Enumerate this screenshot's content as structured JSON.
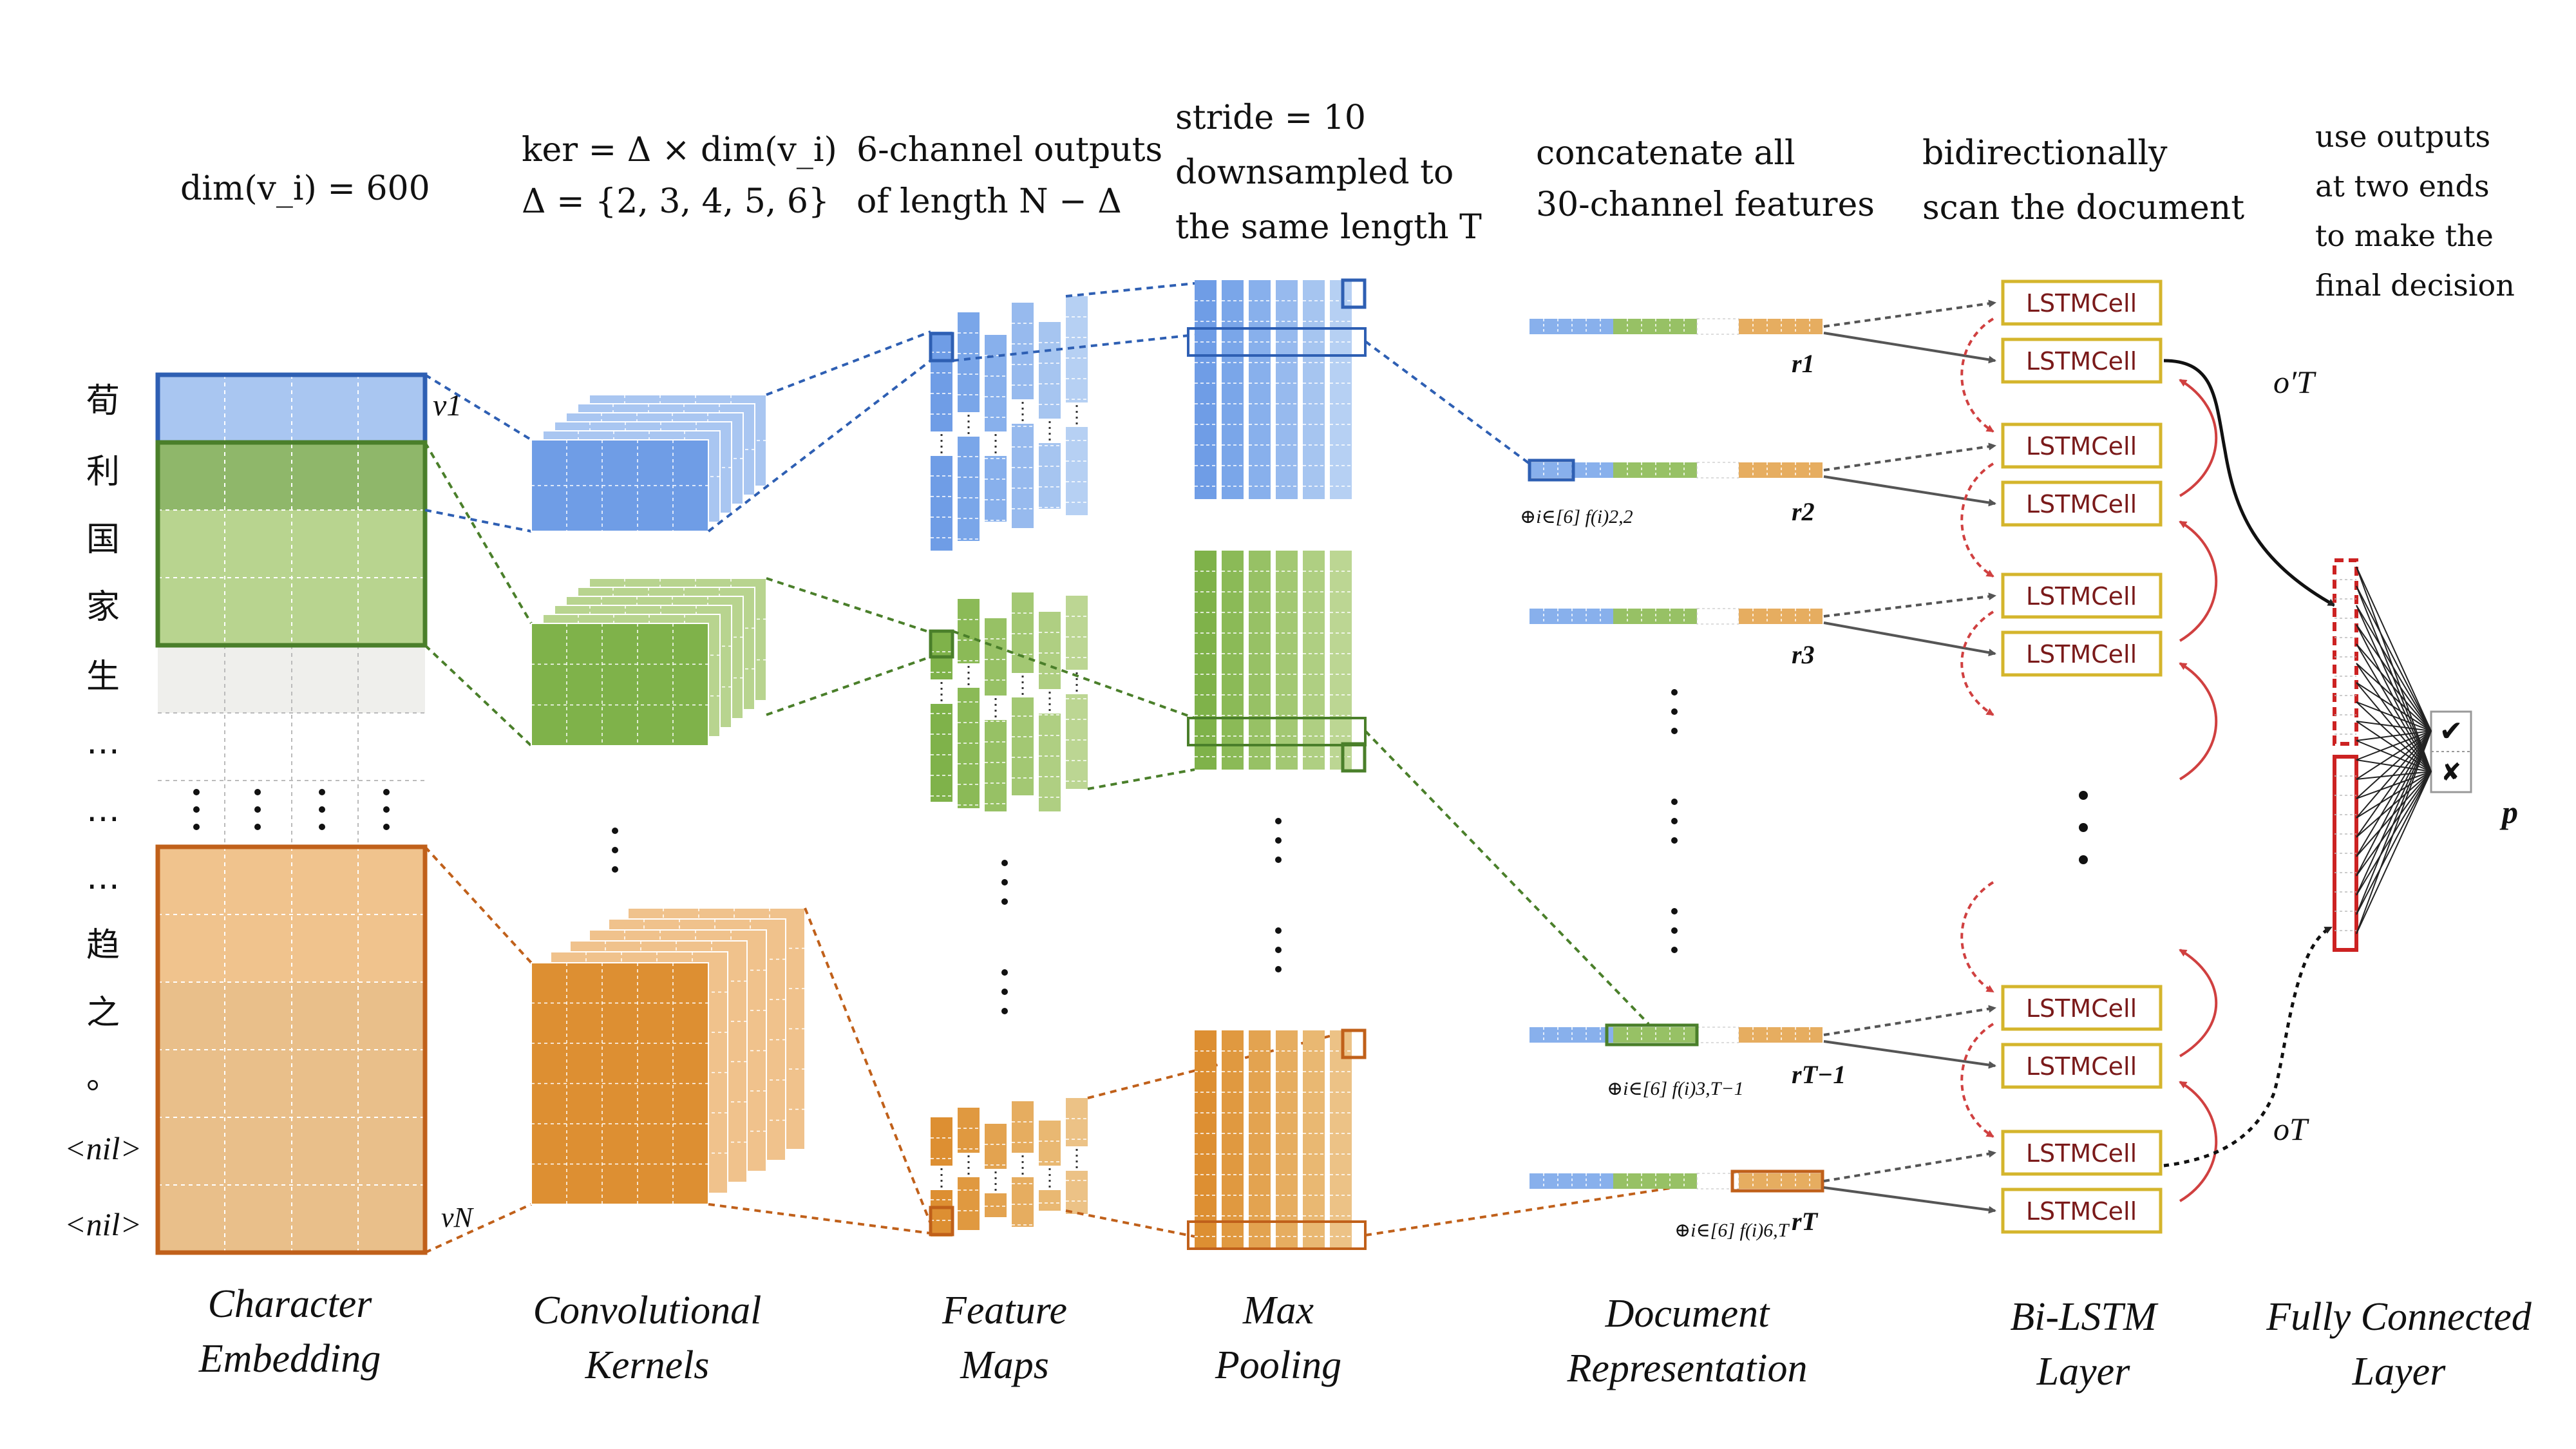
{
  "colors": {
    "blue": "#6f9de6",
    "blue_light": "#a9c6f1",
    "blue_border": "#2e5fb3",
    "green": "#7fb24a",
    "green_light": "#b8d48f",
    "green_border": "#4a7f2a",
    "orange": "#dd8f32",
    "orange_light": "#f0c28c",
    "orange_border": "#c0601a",
    "lstm_border": "#d4b52c",
    "lstm_text": "#7a1a1a",
    "red": "#d04040"
  },
  "sections": {
    "char_embedding": {
      "label_line1": "Character",
      "label_line2": "Embedding",
      "header": "dim(v_i) = 600"
    },
    "conv_kernels": {
      "label_line1": "Convolutional",
      "label_line2": "Kernels",
      "header_line1": "ker = Δ × dim(v_i)",
      "header_line2": "Δ = {2, 3, 4, 5, 6}"
    },
    "feature_maps": {
      "label_line1": "Feature",
      "label_line2": "Maps",
      "header_line1": "6-channel outputs",
      "header_line2": "of length N − Δ"
    },
    "max_pooling": {
      "label_line1": "Max",
      "label_line2": "Pooling",
      "header_line1": "stride = 10",
      "header_line2": "downsampled to",
      "header_line3": "the same length T"
    },
    "doc_repr": {
      "label_line1": "Document",
      "label_line2": "Representation",
      "header_line1": "concatenate all",
      "header_line2": "30-channel features"
    },
    "bilstm": {
      "label_line1": "Bi-LSTM",
      "label_line2": "Layer",
      "header_line1": "bidirectionally",
      "header_line2": "scan the document"
    },
    "fc": {
      "label_line1": "Fully Connected",
      "label_line2": "Layer",
      "header_line1": "use outputs",
      "header_line2": "at two ends",
      "header_line3": "to make the",
      "header_line4": "final decision"
    }
  },
  "characters": [
    "荀",
    "利",
    "国",
    "家",
    "生",
    "…",
    "…",
    "…",
    "趋",
    "之",
    "。",
    "<nil>",
    "<nil>"
  ],
  "vector_labels": {
    "first": "v1",
    "last": "vN"
  },
  "doc_rows": [
    {
      "label": "r1"
    },
    {
      "label": "r2",
      "annot": "⊕i∈[6] f(i)2,2"
    },
    {
      "label": "r3"
    },
    {
      "label": "rT−1",
      "annot": "⊕i∈[6] f(i)3,T−1"
    },
    {
      "label": "rT",
      "annot": "⊕i∈[6] f(i)6,T"
    }
  ],
  "lstm_cell_label": "LSTMCell",
  "outputs": {
    "o_prime": "o′T",
    "o": "oT",
    "p": "p"
  },
  "decision": {
    "yes": "✔",
    "no": "✘"
  }
}
